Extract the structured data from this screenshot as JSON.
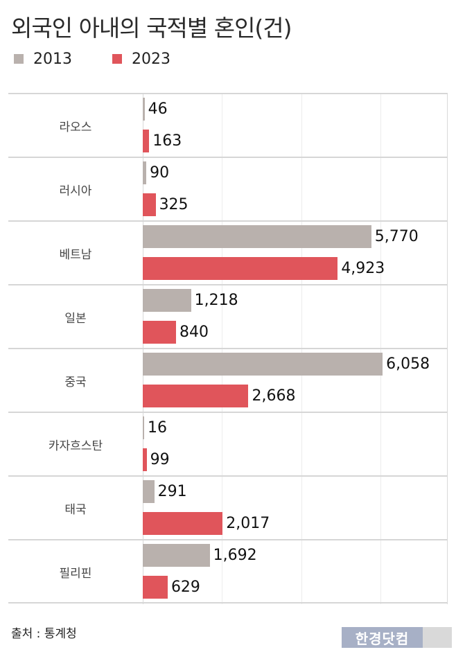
{
  "title": "외국인 아내의 국적별 혼인(건)",
  "legend": [
    {
      "label": "2013",
      "color": "#b9b1ad"
    },
    {
      "label": "2023",
      "color": "#e0555b"
    }
  ],
  "source": "출처 : 통계청",
  "logo": {
    "text": "한경닷컴",
    "color": "#a7b0c6",
    "tail_color": "#d9d9d9"
  },
  "chart_data": {
    "type": "bar",
    "orientation": "horizontal",
    "title": "외국인 아내의 국적별 혼인(건)",
    "xlabel": "",
    "ylabel": "",
    "categories": [
      "라오스",
      "러시아",
      "베트남",
      "일본",
      "중국",
      "카자흐스탄",
      "태국",
      "필리핀"
    ],
    "series": [
      {
        "name": "2013",
        "color": "#b9b1ad",
        "values": [
          46,
          90,
          5770,
          1218,
          6058,
          16,
          291,
          1692
        ],
        "labels": [
          "46",
          "90",
          "5,770",
          "1,218",
          "6,058",
          "16",
          "291",
          "1,692"
        ]
      },
      {
        "name": "2023",
        "color": "#e0555b",
        "values": [
          163,
          325,
          4923,
          840,
          2668,
          99,
          2017,
          629
        ],
        "labels": [
          "163",
          "325",
          "4,923",
          "840",
          "2,668",
          "99",
          "2,017",
          "629"
        ]
      }
    ],
    "xlim": [
      0,
      7700
    ],
    "gridlines_at": [
      2000,
      4000,
      6000
    ],
    "grid": true,
    "legend_position": "top-left",
    "data_labels": true
  }
}
